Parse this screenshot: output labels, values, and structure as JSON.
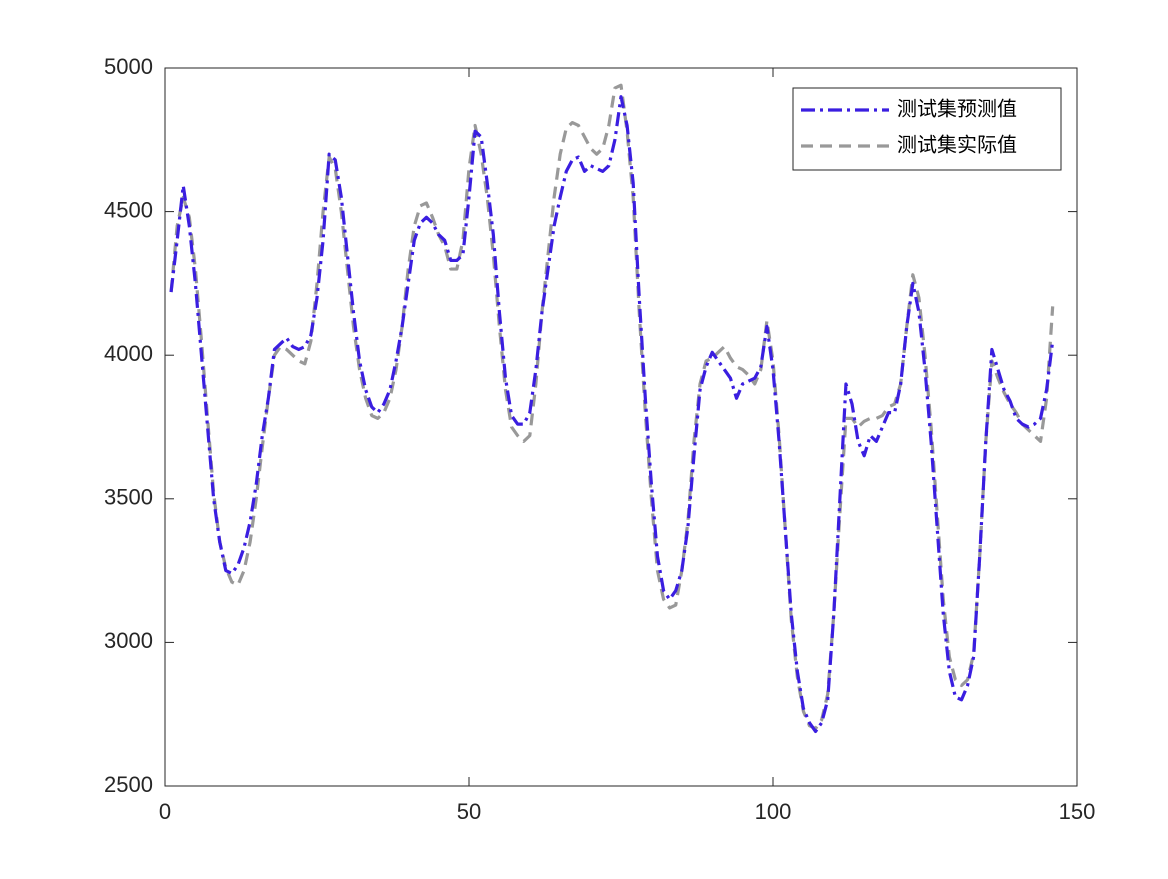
{
  "chart_data": {
    "type": "line",
    "x": [
      1,
      2,
      3,
      4,
      5,
      6,
      7,
      8,
      9,
      10,
      11,
      12,
      13,
      14,
      15,
      16,
      17,
      18,
      19,
      20,
      21,
      22,
      23,
      24,
      25,
      26,
      27,
      28,
      29,
      30,
      31,
      32,
      33,
      34,
      35,
      36,
      37,
      38,
      39,
      40,
      41,
      42,
      43,
      44,
      45,
      46,
      47,
      48,
      49,
      50,
      51,
      52,
      53,
      54,
      55,
      56,
      57,
      58,
      59,
      60,
      61,
      62,
      63,
      64,
      65,
      66,
      67,
      68,
      69,
      70,
      71,
      72,
      73,
      74,
      75,
      76,
      77,
      78,
      79,
      80,
      81,
      82,
      83,
      84,
      85,
      86,
      87,
      88,
      89,
      90,
      91,
      92,
      93,
      94,
      95,
      96,
      97,
      98,
      99,
      100,
      101,
      102,
      103,
      104,
      105,
      106,
      107,
      108,
      109,
      110,
      111,
      112,
      113,
      114,
      115,
      116,
      117,
      118,
      119,
      120,
      121,
      122,
      123,
      124,
      125,
      126,
      127,
      128,
      129,
      130,
      131,
      132,
      133,
      134,
      135,
      136,
      137,
      138,
      139,
      140,
      141,
      142,
      143,
      144,
      145,
      146
    ],
    "series": [
      {
        "name": "测试集预测值",
        "color": "#3a1ee0",
        "dash": "dashdot",
        "values": [
          4220,
          4400,
          4590,
          4450,
          4250,
          4000,
          3750,
          3500,
          3350,
          3250,
          3240,
          3270,
          3330,
          3420,
          3550,
          3720,
          3850,
          4020,
          4040,
          4060,
          4030,
          4020,
          4030,
          4070,
          4200,
          4400,
          4700,
          4680,
          4550,
          4350,
          4150,
          3980,
          3880,
          3820,
          3800,
          3830,
          3880,
          3980,
          4100,
          4250,
          4400,
          4460,
          4480,
          4460,
          4420,
          4400,
          4330,
          4330,
          4350,
          4550,
          4780,
          4760,
          4600,
          4420,
          4150,
          3920,
          3790,
          3760,
          3760,
          3800,
          3950,
          4150,
          4300,
          4450,
          4550,
          4640,
          4680,
          4690,
          4640,
          4660,
          4650,
          4640,
          4660,
          4750,
          4900,
          4800,
          4600,
          4200,
          3850,
          3550,
          3300,
          3180,
          3150,
          3180,
          3250,
          3400,
          3650,
          3880,
          3960,
          4010,
          3980,
          3950,
          3920,
          3850,
          3900,
          3910,
          3920,
          3960,
          4100,
          3950,
          3700,
          3400,
          3100,
          2900,
          2770,
          2720,
          2690,
          2720,
          2800,
          3100,
          3500,
          3900,
          3830,
          3700,
          3650,
          3720,
          3700,
          3750,
          3800,
          3800,
          3900,
          4100,
          4250,
          4150,
          3950,
          3700,
          3400,
          3100,
          2900,
          2810,
          2800,
          2850,
          2950,
          3300,
          3700,
          4020,
          3950,
          3880,
          3840,
          3780,
          3760,
          3750,
          3760,
          3780,
          3880,
          4050
        ]
      },
      {
        "name": "测试集实际值",
        "color": "#999999",
        "dash": "dashed",
        "values": [
          4220,
          4450,
          4550,
          4480,
          4300,
          4050,
          3780,
          3520,
          3350,
          3260,
          3210,
          3200,
          3250,
          3350,
          3500,
          3680,
          3850,
          4000,
          4030,
          4020,
          4000,
          3980,
          3970,
          4050,
          4250,
          4500,
          4690,
          4650,
          4500,
          4300,
          4100,
          3950,
          3850,
          3790,
          3780,
          3800,
          3850,
          3950,
          4100,
          4300,
          4450,
          4520,
          4530,
          4480,
          4420,
          4380,
          4300,
          4300,
          4400,
          4650,
          4800,
          4700,
          4550,
          4350,
          4100,
          3880,
          3750,
          3720,
          3700,
          3720,
          3900,
          4150,
          4350,
          4550,
          4700,
          4790,
          4810,
          4800,
          4760,
          4720,
          4700,
          4720,
          4800,
          4930,
          4940,
          4780,
          4550,
          4150,
          3800,
          3500,
          3250,
          3150,
          3120,
          3130,
          3250,
          3420,
          3700,
          3900,
          3980,
          3990,
          4010,
          4030,
          3990,
          3960,
          3950,
          3930,
          3900,
          3950,
          4120,
          3980,
          3720,
          3400,
          3080,
          2880,
          2760,
          2710,
          2700,
          2730,
          2820,
          3100,
          3450,
          3780,
          3780,
          3750,
          3770,
          3780,
          3780,
          3790,
          3820,
          3830,
          3900,
          4100,
          4280,
          4200,
          4000,
          3750,
          3450,
          3150,
          2950,
          2870,
          2850,
          2870,
          2960,
          3300,
          3700,
          3980,
          3920,
          3870,
          3830,
          3800,
          3760,
          3740,
          3720,
          3700,
          3850,
          4170
        ]
      }
    ],
    "xlim": [
      0,
      150
    ],
    "xticks": [
      0,
      50,
      100,
      150
    ],
    "ylim": [
      2500,
      5000
    ],
    "yticks": [
      2500,
      3000,
      3500,
      4000,
      4500,
      5000
    ],
    "grid": false,
    "legend": "northeast"
  }
}
